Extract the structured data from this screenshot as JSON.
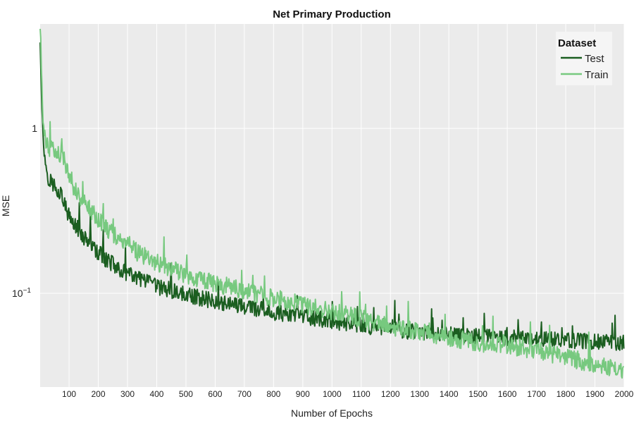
{
  "chart_data": {
    "type": "line",
    "title": "Net Primary Production",
    "xlabel": "Number of Epochs",
    "ylabel": "MSE",
    "xlim": [
      1,
      2000
    ],
    "ylim": [
      0.027,
      4.3
    ],
    "yscale": "log",
    "grid": true,
    "x_ticks": [
      "100",
      "200",
      "300",
      "400",
      "500",
      "600",
      "700",
      "800",
      "900",
      "1000",
      "1100",
      "1200",
      "1300",
      "1400",
      "1500",
      "1600",
      "1700",
      "1800",
      "1900",
      "2000"
    ],
    "y_ticks": [
      {
        "value": 1,
        "base": "1",
        "exp": ""
      },
      {
        "value": 0.1,
        "base": "10",
        "exp": "−1"
      }
    ],
    "legend": {
      "title": "Dataset",
      "position": "top-right"
    },
    "series": [
      {
        "name": "Test",
        "color": "#1b5e20",
        "noise": 0.05,
        "points": [
          [
            1,
            3.5
          ],
          [
            10,
            0.9
          ],
          [
            20,
            0.6
          ],
          [
            30,
            0.5
          ],
          [
            40,
            0.47
          ],
          [
            50,
            0.45
          ],
          [
            60,
            0.43
          ],
          [
            70,
            0.41
          ],
          [
            80,
            0.37
          ],
          [
            90,
            0.32
          ],
          [
            100,
            0.29
          ],
          [
            120,
            0.26
          ],
          [
            150,
            0.22
          ],
          [
            200,
            0.175
          ],
          [
            250,
            0.15
          ],
          [
            300,
            0.13
          ],
          [
            350,
            0.12
          ],
          [
            400,
            0.11
          ],
          [
            450,
            0.104
          ],
          [
            500,
            0.098
          ],
          [
            600,
            0.09
          ],
          [
            700,
            0.083
          ],
          [
            800,
            0.077
          ],
          [
            900,
            0.072
          ],
          [
            1000,
            0.068
          ],
          [
            1100,
            0.064
          ],
          [
            1200,
            0.061
          ],
          [
            1300,
            0.058
          ],
          [
            1400,
            0.056
          ],
          [
            1500,
            0.055
          ],
          [
            1600,
            0.054
          ],
          [
            1700,
            0.053
          ],
          [
            1800,
            0.052
          ],
          [
            1900,
            0.051
          ],
          [
            2000,
            0.05
          ]
        ]
      },
      {
        "name": "Train",
        "color": "#77c97f",
        "noise": 0.055,
        "points": [
          [
            1,
            4.2
          ],
          [
            10,
            1.2
          ],
          [
            20,
            0.85
          ],
          [
            30,
            0.78
          ],
          [
            40,
            0.74
          ],
          [
            60,
            0.71
          ],
          [
            80,
            0.68
          ],
          [
            100,
            0.5
          ],
          [
            120,
            0.43
          ],
          [
            150,
            0.36
          ],
          [
            200,
            0.28
          ],
          [
            250,
            0.23
          ],
          [
            300,
            0.195
          ],
          [
            350,
            0.17
          ],
          [
            400,
            0.155
          ],
          [
            450,
            0.14
          ],
          [
            500,
            0.13
          ],
          [
            600,
            0.115
          ],
          [
            700,
            0.104
          ],
          [
            800,
            0.094
          ],
          [
            900,
            0.085
          ],
          [
            1000,
            0.078
          ],
          [
            1100,
            0.07
          ],
          [
            1200,
            0.063
          ],
          [
            1300,
            0.058
          ],
          [
            1400,
            0.054
          ],
          [
            1500,
            0.05
          ],
          [
            1600,
            0.048
          ],
          [
            1700,
            0.045
          ],
          [
            1800,
            0.041
          ],
          [
            1900,
            0.037
          ],
          [
            2000,
            0.034
          ]
        ]
      }
    ]
  }
}
